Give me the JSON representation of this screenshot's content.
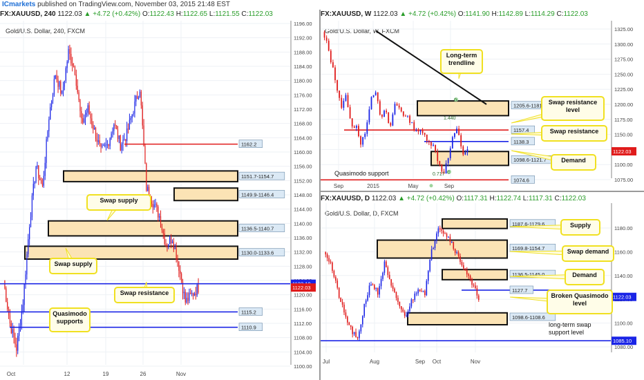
{
  "attribution": {
    "brand": "ICmarkets",
    "text": " published on TradingView.com, November 03, 2015 21:48 EST"
  },
  "charts": [
    {
      "id": "h4",
      "header": {
        "symbol": "FX:XAUUSD, 240",
        "last": "1122.03",
        "change": "▲ +4.72 (+0.42%)",
        "o": "1122.43",
        "h": "1122.65",
        "l": "1121.55",
        "c": "1122.03"
      },
      "title": "Gold/U.S. Dollar, 240, FXCM",
      "y_ticks": [
        "1196.00",
        "1192.00",
        "1188.00",
        "1184.00",
        "1180.00",
        "1176.00",
        "1172.00",
        "1168.00",
        "1164.00",
        "1160.00",
        "1156.00",
        "1152.00",
        "1148.00",
        "1144.00",
        "1140.00",
        "1136.00",
        "1132.00",
        "1128.00",
        "1124.00",
        "1120.00",
        "1116.00",
        "1112.00",
        "1108.00",
        "1104.00",
        "1100.00"
      ],
      "x_ticks": [
        "Oct",
        "12",
        "19",
        "26",
        "Nov"
      ],
      "zone_labels": [
        "1151.7-1154.7",
        "1149.9-1146.4",
        "1136.5-1140.7",
        "1130.0-1133.6"
      ],
      "level_labels": [
        "1162.2",
        "1115.2",
        "1110.9"
      ],
      "price_tags": [
        "1123.10",
        "1122.03"
      ],
      "callouts": [
        "Swap supply",
        "Swap supply",
        "Swap resistance",
        "Quasimodo supports"
      ]
    },
    {
      "id": "weekly",
      "header": {
        "symbol": "FX:XAUUSD, W",
        "last": "1122.03",
        "change": "▲ +4.72 (+0.42%)",
        "o": "1141.90",
        "h": "1142.89",
        "l": "1114.29",
        "c": "1122.03"
      },
      "title": "Gold/U.S. Dollar, W, FXCM",
      "y_ticks": [
        "1325.00",
        "1300.00",
        "1275.00",
        "1250.00",
        "1225.00",
        "1200.00",
        "1175.00",
        "1150.00",
        "1125.00",
        "1100.00",
        "1075.00"
      ],
      "x_ticks": [
        "Sep",
        "2015",
        "May",
        "Sep"
      ],
      "zone_labels": [
        "1205.6-1181.2",
        "1098.6-1121.7"
      ],
      "level_labels": [
        "1157.4",
        "1138.3",
        "1074.6"
      ],
      "price_tags": [
        "1122.03"
      ],
      "pattern_labels": [
        "D",
        "1.440",
        "0.717",
        "C"
      ],
      "callouts": [
        "Long-term trendline",
        "Swap resistance level",
        "Swap resistance",
        "Demand"
      ],
      "text_labels": [
        "Quasimodo support"
      ]
    },
    {
      "id": "daily",
      "header": {
        "symbol": "FX:XAUUSD, D",
        "last": "1122.03",
        "change": "▲ +4.72 (+0.42%)",
        "o": "1117.31",
        "h": "1122.74",
        "l": "1117.31",
        "c": "1122.03"
      },
      "title": "Gold/U.S. Dollar, D, FXCM",
      "y_ticks": [
        "1180.00",
        "1160.00",
        "1140.00",
        "1120.00",
        "1100.00",
        "1080.00"
      ],
      "x_ticks": [
        "Jul",
        "Aug",
        "Sep",
        "Oct",
        "Nov"
      ],
      "zone_labels": [
        "1187.6-1179.6",
        "1169.8-1154.7",
        "1136.5-1145.0",
        "1098.6-1108.6"
      ],
      "level_labels": [
        "1127.7"
      ],
      "price_tags": [
        "1122.03",
        "1085.10"
      ],
      "callouts": [
        "Supply",
        "Swap demand",
        "Demand",
        "Broken Quasimodo level"
      ],
      "text_labels": [
        "long-term swap support level"
      ]
    }
  ],
  "colors": {
    "bull": "#1a24e6",
    "bear": "#e01b1b",
    "zone_fill": "#fbe3b5",
    "callout_border": "#f0e020",
    "level_blue": "#1a24e6",
    "level_red": "#e01b1b",
    "label_box": "#dbe9f5"
  }
}
